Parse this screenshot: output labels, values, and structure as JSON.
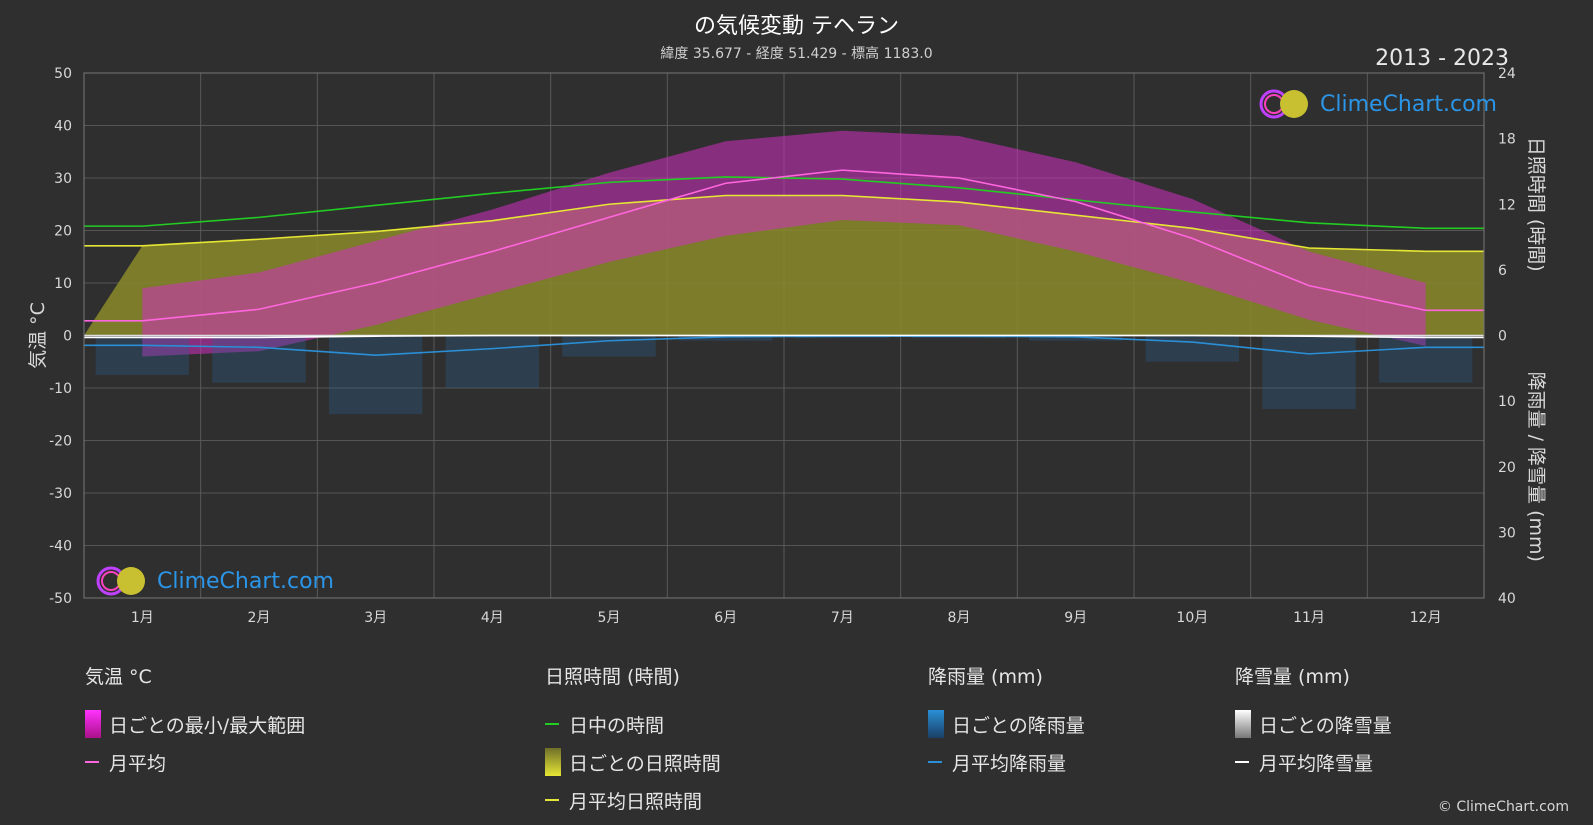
{
  "header": {
    "title": "の気候変動 テヘラン",
    "subtitle": "緯度 35.677 - 経度 51.429 - 標高 1183.0",
    "period": "2013 - 2023"
  },
  "axes": {
    "left_label": "気温 °C",
    "right_top_label": "日照時間 (時間)",
    "right_bottom_label": "降雨量 / 降雪量 (mm)",
    "left_ticks": [
      "50",
      "40",
      "30",
      "20",
      "10",
      "0",
      "-10",
      "-20",
      "-30",
      "-40",
      "-50"
    ],
    "right_top_ticks": [
      "24",
      "18",
      "12",
      "6",
      "0"
    ],
    "right_bottom_ticks": [
      "10",
      "20",
      "30",
      "40"
    ]
  },
  "chart_data": {
    "type": "line",
    "categories": [
      "1月",
      "2月",
      "3月",
      "4月",
      "5月",
      "6月",
      "7月",
      "8月",
      "9月",
      "10月",
      "11月",
      "12月"
    ],
    "temperature_ylim": [
      -50,
      50
    ],
    "sunshine_ylim": [
      0,
      24
    ],
    "precip_ylim_inverted": [
      0,
      40
    ],
    "series": [
      {
        "name": "日中の時間",
        "axis": "sunshine",
        "color": "#22cc22",
        "values": [
          10.0,
          10.8,
          11.9,
          13.0,
          14.0,
          14.5,
          14.3,
          13.5,
          12.4,
          11.3,
          10.3,
          9.8
        ]
      },
      {
        "name": "月平均日照時間",
        "axis": "sunshine",
        "color": "#e6e635",
        "values": [
          8.2,
          8.8,
          9.5,
          10.5,
          12.0,
          12.8,
          12.8,
          12.2,
          11.0,
          9.8,
          8.0,
          7.7
        ]
      },
      {
        "name": "月平均",
        "axis": "temperature",
        "color": "#ff66dd",
        "values": [
          2.8,
          5.0,
          10.0,
          16.0,
          22.5,
          29.0,
          31.5,
          30.0,
          25.5,
          18.5,
          9.5,
          4.8
        ]
      },
      {
        "name": "月平均降雨量",
        "axis": "precip",
        "color": "#2a8fd6",
        "values": [
          1.5,
          1.8,
          3.0,
          2.0,
          0.8,
          0.2,
          0.1,
          0.1,
          0.2,
          1.0,
          2.8,
          1.8
        ]
      },
      {
        "name": "月平均降雪量",
        "axis": "precip",
        "color": "#ffffff",
        "values": [
          0.3,
          0.3,
          0.1,
          0,
          0,
          0,
          0,
          0,
          0,
          0,
          0.1,
          0.3
        ]
      }
    ],
    "daily_temperature_range": {
      "min": [
        -4,
        -3,
        2,
        8,
        14,
        19,
        22,
        21,
        16,
        10,
        3,
        -2
      ],
      "max": [
        9,
        12,
        18,
        24,
        31,
        37,
        39,
        38,
        33,
        26,
        16,
        10
      ]
    }
  },
  "legend": {
    "temp": {
      "head": "気温 °C",
      "items": [
        "日ごとの最小/最大範囲",
        "月平均"
      ]
    },
    "sun": {
      "head": "日照時間 (時間)",
      "items": [
        "日中の時間",
        "日ごとの日照時間",
        "月平均日照時間"
      ]
    },
    "rain": {
      "head": "降雨量 (mm)",
      "items": [
        "日ごとの降雨量",
        "月平均降雨量"
      ]
    },
    "snow": {
      "head": "降雪量 (mm)",
      "items": [
        "日ごとの降雪量",
        "月平均降雪量"
      ]
    }
  },
  "logo_text": "ClimeChart.com",
  "copyright": "© ClimeChart.com"
}
